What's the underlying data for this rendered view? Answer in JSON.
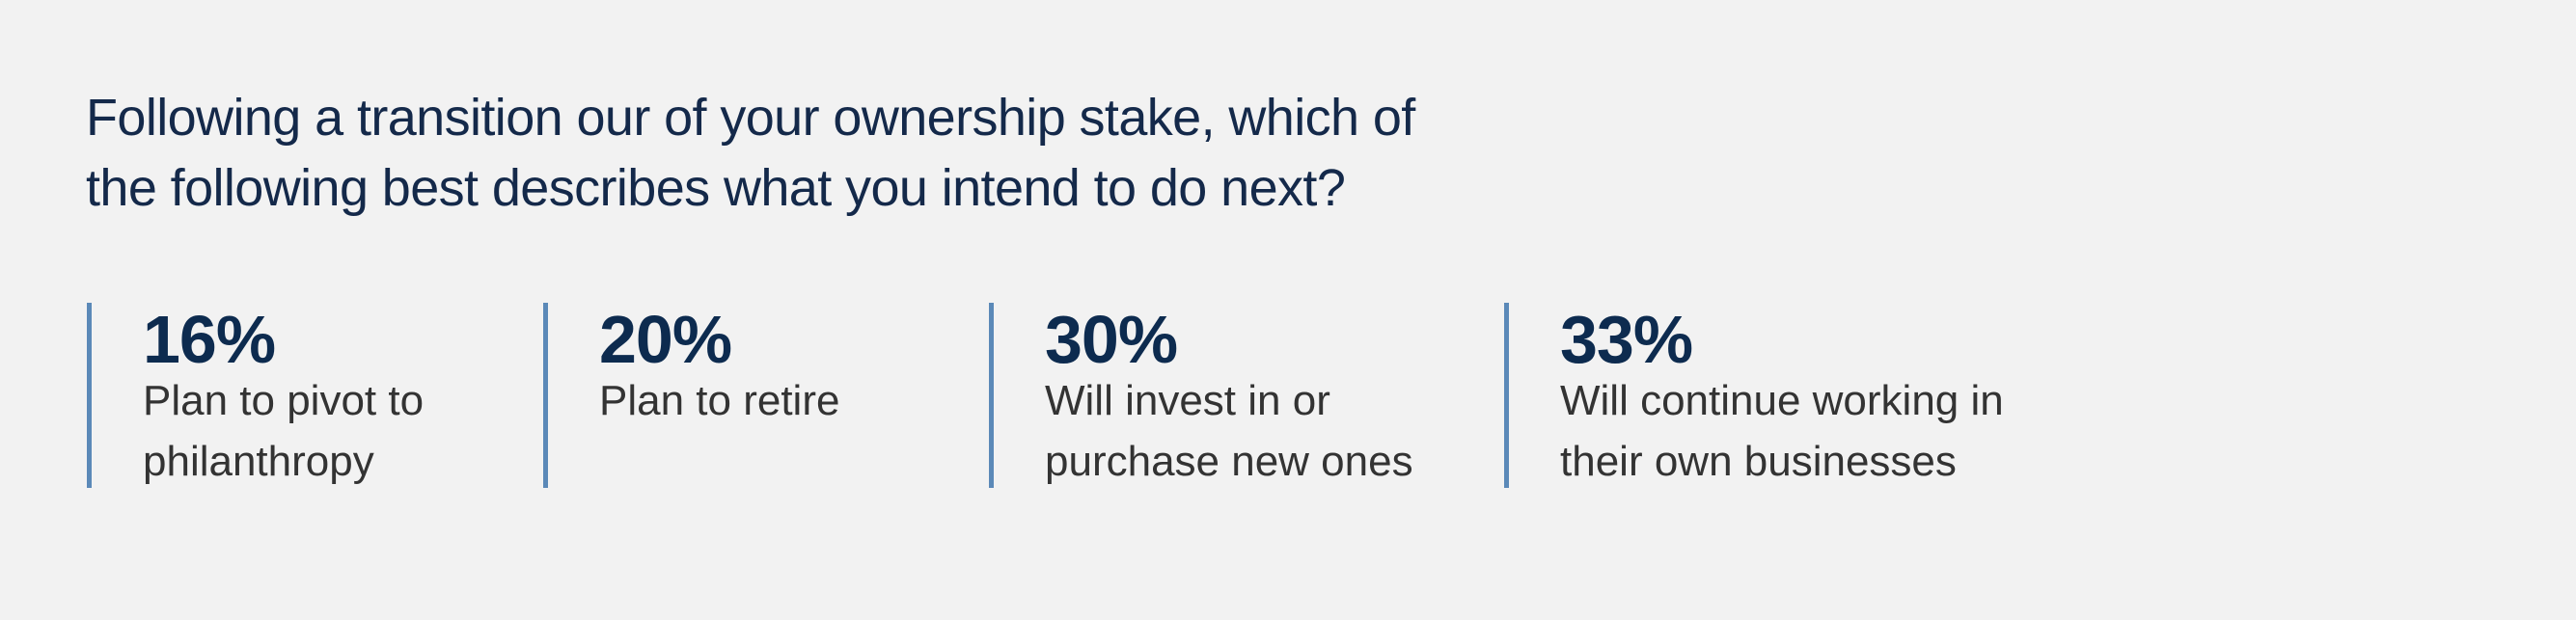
{
  "title": {
    "lines": [
      "Following a transition our of your ownership stake, which of",
      "the following best describes what you intend to do next?"
    ]
  },
  "stats": [
    {
      "value": "16%",
      "label_lines": [
        "Plan to pivot to",
        "philanthropy"
      ]
    },
    {
      "value": "20%",
      "label_lines": [
        "Plan to retire"
      ]
    },
    {
      "value": "30%",
      "label_lines": [
        "Will invest in or",
        "purchase new ones"
      ]
    },
    {
      "value": "33%",
      "label_lines": [
        "Will continue working in",
        "their own businesses"
      ]
    }
  ],
  "colors": {
    "background": "#f2f2f2",
    "accent_bar": "#5b89b8",
    "number": "#0d2b4f",
    "label": "#333333",
    "title": "#14294a"
  }
}
